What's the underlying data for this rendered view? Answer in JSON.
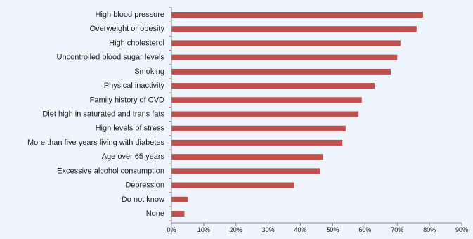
{
  "chart_data": {
    "type": "bar",
    "orientation": "horizontal",
    "categories": [
      "High blood pressure",
      "Overweight or obesity",
      "High cholesterol",
      "Uncontrolled blood sugar levels",
      "Smoking",
      "Physical inactivity",
      "Family history of CVD",
      "Diet high in saturated and trans fats",
      "High levels of stress",
      "More than five years living with diabetes",
      "Age over 65 years",
      "Excessive alcohol consumption",
      "Depression",
      "Do not know",
      "None"
    ],
    "values": [
      78,
      76,
      71,
      70,
      68,
      63,
      59,
      58,
      54,
      53,
      47,
      46,
      38,
      5,
      4
    ],
    "x_ticks": [
      "0%",
      "10%",
      "20%",
      "30%",
      "40%",
      "50%",
      "60%",
      "70%",
      "80%",
      "90%"
    ],
    "xlim": [
      0,
      90
    ],
    "title": "",
    "xlabel": "",
    "ylabel": "",
    "grid": false,
    "legend": "none",
    "colors": {
      "bar": "#c0504d",
      "axis": "#8c8c8c",
      "text": "#1a1a1a",
      "background": "#eef5fc"
    }
  }
}
